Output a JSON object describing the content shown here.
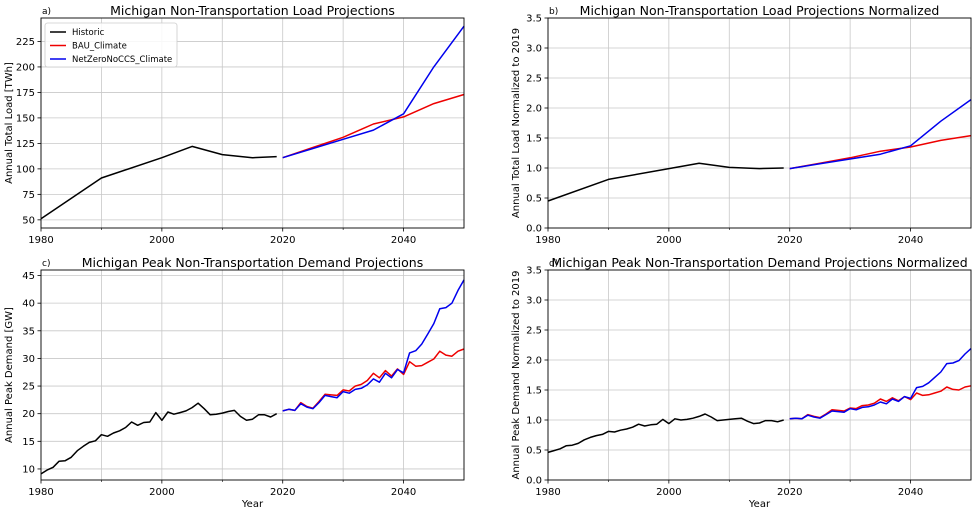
{
  "colors": {
    "Historic": "#000000",
    "BAU_Climate": "#ee0000",
    "NetZeroNoCCS_Climate": "#0000ee",
    "grid": "#c8c8c8"
  },
  "chart_data": [
    {
      "type": "line",
      "panel_label": "a)",
      "title": "Michigan Non-Transportation Load Projections",
      "xlabel": "",
      "ylabel": "Annual Total Load [TWh]",
      "xlim": [
        1980,
        2050
      ],
      "ylim": [
        42,
        248
      ],
      "xticks": [
        1980,
        2000,
        2020,
        2040
      ],
      "yticks": [
        50,
        75,
        100,
        125,
        150,
        175,
        200,
        225
      ],
      "minor_xticks": [
        1990,
        2010,
        2030
      ],
      "grid": true,
      "legend": {
        "placement": "top-left",
        "entries": [
          "Historic",
          "BAU_Climate",
          "NetZeroNoCCS_Climate"
        ]
      },
      "series": [
        {
          "name": "Historic",
          "x": [
            1980,
            1990,
            2000,
            2005,
            2010,
            2015,
            2019
          ],
          "y": [
            51,
            91,
            111,
            122,
            114,
            111,
            112
          ]
        },
        {
          "name": "BAU_Climate",
          "x": [
            2020,
            2025,
            2030,
            2035,
            2040,
            2045,
            2050
          ],
          "y": [
            111,
            121,
            131,
            144,
            151,
            164,
            173
          ]
        },
        {
          "name": "NetZeroNoCCS_Climate",
          "x": [
            2020,
            2025,
            2030,
            2035,
            2040,
            2045,
            2050
          ],
          "y": [
            111,
            120,
            129,
            138,
            154,
            200,
            240
          ]
        }
      ]
    },
    {
      "type": "line",
      "panel_label": "b)",
      "title": "Michigan Non-Transportation Load Projections Normalized",
      "xlabel": "",
      "ylabel": "Annual Total Load Normalized to 2019",
      "xlim": [
        1980,
        2050
      ],
      "ylim": [
        0,
        3.5
      ],
      "xticks": [
        1980,
        2000,
        2020,
        2040
      ],
      "yticks": [
        0.0,
        0.5,
        1.0,
        1.5,
        2.0,
        2.5,
        3.0,
        3.5
      ],
      "minor_xticks": [
        1990,
        2010,
        2030
      ],
      "grid": true,
      "series": [
        {
          "name": "Historic",
          "x": [
            1980,
            1990,
            2000,
            2005,
            2010,
            2015,
            2019
          ],
          "y": [
            0.45,
            0.81,
            0.99,
            1.08,
            1.01,
            0.99,
            1.0
          ]
        },
        {
          "name": "BAU_Climate",
          "x": [
            2020,
            2025,
            2030,
            2035,
            2040,
            2045,
            2050
          ],
          "y": [
            0.99,
            1.08,
            1.17,
            1.28,
            1.35,
            1.46,
            1.54
          ]
        },
        {
          "name": "NetZeroNoCCS_Climate",
          "x": [
            2020,
            2025,
            2030,
            2035,
            2040,
            2045,
            2050
          ],
          "y": [
            0.99,
            1.07,
            1.15,
            1.23,
            1.37,
            1.78,
            2.14
          ]
        }
      ]
    },
    {
      "type": "line",
      "panel_label": "c)",
      "title": "Michigan Peak Non-Transportation Demand Projections",
      "xlabel": "Year",
      "ylabel": "Annual Peak Demand [GW]",
      "xlim": [
        1980,
        2050
      ],
      "ylim": [
        8,
        46
      ],
      "xticks": [
        1980,
        2000,
        2020,
        2040
      ],
      "yticks": [
        10,
        15,
        20,
        25,
        30,
        35,
        40,
        45
      ],
      "minor_xticks": [
        1990,
        2010,
        2030
      ],
      "grid": true,
      "series": [
        {
          "name": "Historic",
          "x": [
            1980,
            1981,
            1982,
            1983,
            1984,
            1985,
            1986,
            1987,
            1988,
            1989,
            1990,
            1991,
            1992,
            1993,
            1994,
            1995,
            1996,
            1997,
            1998,
            1999,
            2000,
            2001,
            2002,
            2003,
            2004,
            2005,
            2006,
            2007,
            2008,
            2009,
            2010,
            2011,
            2012,
            2013,
            2014,
            2015,
            2016,
            2017,
            2018,
            2019
          ],
          "y": [
            9.1,
            9.8,
            10.3,
            11.4,
            11.5,
            12.1,
            13.3,
            14.1,
            14.8,
            15.1,
            16.2,
            15.9,
            16.5,
            16.9,
            17.5,
            18.5,
            17.9,
            18.4,
            18.5,
            20.2,
            18.8,
            20.3,
            19.9,
            20.2,
            20.5,
            21.1,
            21.9,
            20.9,
            19.8,
            19.9,
            20.1,
            20.4,
            20.6,
            19.5,
            18.8,
            19.0,
            19.8,
            19.8,
            19.4,
            20.0
          ]
        },
        {
          "name": "BAU_Climate",
          "x": [
            2020,
            2021,
            2022,
            2023,
            2024,
            2025,
            2026,
            2027,
            2028,
            2029,
            2030,
            2031,
            2032,
            2033,
            2034,
            2035,
            2036,
            2037,
            2038,
            2039,
            2040,
            2041,
            2042,
            2043,
            2044,
            2045,
            2046,
            2047,
            2048,
            2049,
            2050
          ],
          "y": [
            20.5,
            20.8,
            20.6,
            22.0,
            21.3,
            21.0,
            22.2,
            23.5,
            23.4,
            23.3,
            24.3,
            24.1,
            25.0,
            25.3,
            26.0,
            27.3,
            26.5,
            27.8,
            26.8,
            28.1,
            27.1,
            29.4,
            28.6,
            28.7,
            29.3,
            29.9,
            31.3,
            30.6,
            30.4,
            31.3,
            31.7
          ]
        },
        {
          "name": "NetZeroNoCCS_Climate",
          "x": [
            2020,
            2021,
            2022,
            2023,
            2024,
            2025,
            2026,
            2027,
            2028,
            2029,
            2030,
            2031,
            2032,
            2033,
            2034,
            2035,
            2036,
            2037,
            2038,
            2039,
            2040,
            2041,
            2042,
            2043,
            2044,
            2045,
            2046,
            2047,
            2048,
            2049,
            2050
          ],
          "y": [
            20.5,
            20.8,
            20.6,
            21.8,
            21.2,
            20.9,
            22.0,
            23.3,
            23.1,
            22.9,
            24.0,
            23.7,
            24.4,
            24.6,
            25.2,
            26.3,
            25.7,
            27.3,
            26.5,
            28.0,
            27.4,
            31.0,
            31.4,
            32.6,
            34.4,
            36.3,
            39.0,
            39.2,
            40.0,
            42.3,
            44.2
          ]
        }
      ]
    },
    {
      "type": "line",
      "panel_label": "d)",
      "title": "Michigan Peak Non-Transportation Demand Projections Normalized",
      "xlabel": "Year",
      "ylabel": "Annual Peak Demand Normalized to 2019",
      "xlim": [
        1980,
        2050
      ],
      "ylim": [
        0,
        3.5
      ],
      "xticks": [
        1980,
        2000,
        2020,
        2040
      ],
      "yticks": [
        0.0,
        0.5,
        1.0,
        1.5,
        2.0,
        2.5,
        3.0,
        3.5
      ],
      "minor_xticks": [
        1990,
        2010,
        2030
      ],
      "grid": true,
      "series": [
        {
          "name": "Historic",
          "x": [
            1980,
            1981,
            1982,
            1983,
            1984,
            1985,
            1986,
            1987,
            1988,
            1989,
            1990,
            1991,
            1992,
            1993,
            1994,
            1995,
            1996,
            1997,
            1998,
            1999,
            2000,
            2001,
            2002,
            2003,
            2004,
            2005,
            2006,
            2007,
            2008,
            2009,
            2010,
            2011,
            2012,
            2013,
            2014,
            2015,
            2016,
            2017,
            2018,
            2019
          ],
          "y": [
            0.46,
            0.49,
            0.52,
            0.57,
            0.58,
            0.61,
            0.67,
            0.71,
            0.74,
            0.76,
            0.81,
            0.8,
            0.83,
            0.85,
            0.88,
            0.93,
            0.9,
            0.92,
            0.93,
            1.01,
            0.94,
            1.02,
            1.0,
            1.01,
            1.03,
            1.06,
            1.1,
            1.05,
            0.99,
            1.0,
            1.01,
            1.02,
            1.03,
            0.98,
            0.94,
            0.95,
            0.99,
            0.99,
            0.97,
            1.0
          ]
        },
        {
          "name": "BAU_Climate",
          "x": [
            2020,
            2021,
            2022,
            2023,
            2024,
            2025,
            2026,
            2027,
            2028,
            2029,
            2030,
            2031,
            2032,
            2033,
            2034,
            2035,
            2036,
            2037,
            2038,
            2039,
            2040,
            2041,
            2042,
            2043,
            2044,
            2045,
            2046,
            2047,
            2048,
            2049,
            2050
          ],
          "y": [
            1.02,
            1.03,
            1.02,
            1.09,
            1.06,
            1.04,
            1.1,
            1.17,
            1.16,
            1.15,
            1.2,
            1.19,
            1.24,
            1.25,
            1.28,
            1.35,
            1.31,
            1.37,
            1.32,
            1.39,
            1.34,
            1.45,
            1.41,
            1.42,
            1.45,
            1.48,
            1.55,
            1.51,
            1.5,
            1.55,
            1.57
          ]
        },
        {
          "name": "NetZeroNoCCS_Climate",
          "x": [
            2020,
            2021,
            2022,
            2023,
            2024,
            2025,
            2026,
            2027,
            2028,
            2029,
            2030,
            2031,
            2032,
            2033,
            2034,
            2035,
            2036,
            2037,
            2038,
            2039,
            2040,
            2041,
            2042,
            2043,
            2044,
            2045,
            2046,
            2047,
            2048,
            2049,
            2050
          ],
          "y": [
            1.02,
            1.03,
            1.02,
            1.08,
            1.05,
            1.03,
            1.09,
            1.15,
            1.14,
            1.13,
            1.19,
            1.17,
            1.21,
            1.22,
            1.25,
            1.3,
            1.27,
            1.35,
            1.31,
            1.39,
            1.36,
            1.54,
            1.56,
            1.62,
            1.71,
            1.8,
            1.94,
            1.95,
            1.99,
            2.1,
            2.19
          ]
        }
      ]
    }
  ]
}
